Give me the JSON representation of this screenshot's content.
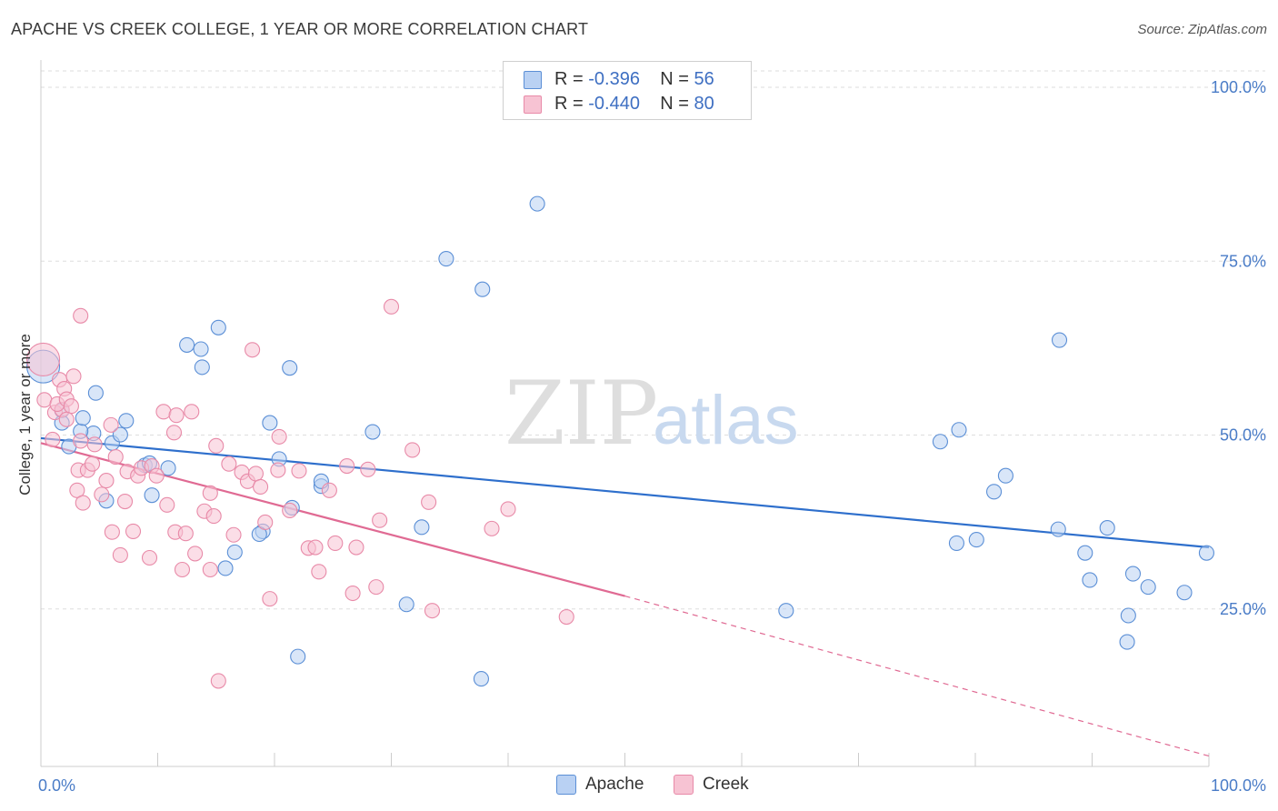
{
  "title": "APACHE VS CREEK COLLEGE, 1 YEAR OR MORE CORRELATION CHART",
  "source": "Source: ZipAtlas.com",
  "watermark": {
    "zip": "ZIP",
    "atlas": "atlas"
  },
  "colors": {
    "apache": "#5b8fd6",
    "apache_fill": "#b9d1f3",
    "apache_line": "#2e6fcc",
    "creek": "#e88aa8",
    "creek_fill": "#f7c3d3",
    "creek_line": "#e06a93",
    "tick_text": "#4a7cc7",
    "grid": "#dddddd"
  },
  "legend": {
    "rows": [
      {
        "r_label": "R =",
        "r_value": "-0.396",
        "n_label": "N =",
        "n_value": "56"
      },
      {
        "r_label": "R =",
        "r_value": "-0.440",
        "n_label": "N =",
        "n_value": "80"
      }
    ]
  },
  "bottom_legend": {
    "apache": "Apache",
    "creek": "Creek"
  },
  "chart_data": {
    "type": "scatter",
    "xlabel": "",
    "ylabel": "College, 1 year or more",
    "xlim": [
      0,
      100
    ],
    "ylim": [
      0,
      100
    ],
    "x_tick_labels": [
      "0.0%",
      "100.0%"
    ],
    "y_tick_labels": [
      "25.0%",
      "50.0%",
      "75.0%",
      "100.0%"
    ],
    "y_ticks": [
      25,
      50,
      75,
      100
    ],
    "grid": "horizontal dashed",
    "legend_placement": "top-center",
    "series": [
      {
        "name": "Apache",
        "r": -0.396,
        "n": 56,
        "trend": {
          "x0": 0,
          "y0": 47.2,
          "x1": 100,
          "y1": 31.5
        },
        "points": [
          [
            0.2,
            57.5,
            18
          ],
          [
            1.8,
            51.2,
            8
          ],
          [
            1.8,
            49.4,
            8
          ],
          [
            4.5,
            47.9,
            8
          ],
          [
            4.7,
            53.7,
            8
          ],
          [
            3.4,
            48.2,
            8
          ],
          [
            3.6,
            50.1,
            8
          ],
          [
            5.6,
            38.2,
            8
          ],
          [
            6.1,
            46.5,
            8
          ],
          [
            6.8,
            47.7,
            8
          ],
          [
            7.3,
            49.7,
            8
          ],
          [
            8.9,
            43.3,
            8
          ],
          [
            9.5,
            39.0,
            8
          ],
          [
            9.3,
            43.6,
            8
          ],
          [
            10.9,
            42.9,
            8
          ],
          [
            12.5,
            60.6,
            8
          ],
          [
            13.7,
            60.0,
            8
          ],
          [
            13.8,
            57.4,
            8
          ],
          [
            15.2,
            63.1,
            8
          ],
          [
            15.8,
            28.5,
            8
          ],
          [
            16.6,
            30.8,
            8
          ],
          [
            19.0,
            33.8,
            8
          ],
          [
            19.6,
            49.4,
            8
          ],
          [
            20.4,
            44.2,
            8
          ],
          [
            21.3,
            57.3,
            8
          ],
          [
            21.5,
            37.2,
            8
          ],
          [
            18.7,
            33.4,
            8
          ],
          [
            24.0,
            40.3,
            8
          ],
          [
            22.0,
            15.8,
            8
          ],
          [
            24.0,
            41.0,
            8
          ],
          [
            28.4,
            48.1,
            8
          ],
          [
            31.3,
            23.3,
            8
          ],
          [
            32.6,
            34.4,
            8
          ],
          [
            34.7,
            73.0,
            8
          ],
          [
            37.8,
            68.6,
            8
          ],
          [
            37.7,
            12.6,
            8
          ],
          [
            42.5,
            80.9,
            8
          ],
          [
            63.8,
            22.4,
            8
          ],
          [
            77.0,
            46.7,
            8
          ],
          [
            78.4,
            32.1,
            8
          ],
          [
            78.6,
            48.4,
            8
          ],
          [
            80.1,
            32.6,
            8
          ],
          [
            81.6,
            39.5,
            8
          ],
          [
            82.6,
            41.8,
            8
          ],
          [
            87.2,
            61.3,
            8
          ],
          [
            87.1,
            34.1,
            8
          ],
          [
            89.4,
            30.7,
            8
          ],
          [
            89.8,
            26.8,
            8
          ],
          [
            91.3,
            34.3,
            8
          ],
          [
            93.0,
            17.9,
            8
          ],
          [
            93.1,
            21.7,
            8
          ],
          [
            93.5,
            27.7,
            8
          ],
          [
            94.8,
            25.8,
            8
          ],
          [
            97.9,
            25.0,
            8
          ],
          [
            99.8,
            30.7,
            8
          ],
          [
            2.4,
            46.0,
            8
          ]
        ]
      },
      {
        "name": "Creek",
        "r": -0.44,
        "n": 80,
        "trend": {
          "x0": 0,
          "y0": 46.5,
          "x1": 50,
          "y1": 24.5,
          "dash_x1": 100,
          "dash_y1": 1.5
        },
        "points": [
          [
            0.2,
            58.5,
            18
          ],
          [
            0.3,
            52.7,
            8
          ],
          [
            1.2,
            50.9,
            8
          ],
          [
            1.8,
            51.3,
            8
          ],
          [
            1.4,
            52.1,
            8
          ],
          [
            1.6,
            55.6,
            8
          ],
          [
            2.0,
            54.3,
            8
          ],
          [
            2.2,
            52.8,
            8
          ],
          [
            2.6,
            51.8,
            8
          ],
          [
            2.8,
            56.1,
            8
          ],
          [
            3.1,
            39.7,
            8
          ],
          [
            3.2,
            42.6,
            8
          ],
          [
            3.4,
            46.8,
            8
          ],
          [
            3.6,
            37.9,
            8
          ],
          [
            3.4,
            64.8,
            8
          ],
          [
            4.0,
            42.6,
            8
          ],
          [
            4.4,
            43.5,
            8
          ],
          [
            4.6,
            46.3,
            8
          ],
          [
            5.2,
            39.1,
            8
          ],
          [
            5.6,
            41.1,
            8
          ],
          [
            6.0,
            49.1,
            8
          ],
          [
            6.4,
            44.5,
            8
          ],
          [
            6.8,
            30.4,
            8
          ],
          [
            7.2,
            38.1,
            8
          ],
          [
            7.4,
            42.4,
            8
          ],
          [
            7.9,
            33.8,
            8
          ],
          [
            8.3,
            41.8,
            8
          ],
          [
            8.6,
            42.9,
            8
          ],
          [
            9.3,
            30.0,
            8
          ],
          [
            9.5,
            43.2,
            8
          ],
          [
            9.9,
            41.8,
            8
          ],
          [
            10.5,
            51.0,
            8
          ],
          [
            10.8,
            37.6,
            8
          ],
          [
            11.5,
            33.7,
            8
          ],
          [
            11.4,
            48.0,
            8
          ],
          [
            11.6,
            50.5,
            8
          ],
          [
            12.1,
            28.3,
            8
          ],
          [
            12.4,
            33.5,
            8
          ],
          [
            12.9,
            51.0,
            8
          ],
          [
            13.2,
            30.6,
            8
          ],
          [
            14.0,
            36.7,
            8
          ],
          [
            14.5,
            28.3,
            8
          ],
          [
            14.5,
            39.3,
            8
          ],
          [
            14.8,
            36.0,
            8
          ],
          [
            15.0,
            46.1,
            8
          ],
          [
            15.2,
            12.3,
            8
          ],
          [
            16.1,
            43.5,
            8
          ],
          [
            16.5,
            33.3,
            8
          ],
          [
            17.2,
            42.3,
            8
          ],
          [
            17.7,
            41.0,
            8
          ],
          [
            18.1,
            59.9,
            8
          ],
          [
            18.4,
            42.1,
            8
          ],
          [
            18.8,
            40.2,
            8
          ],
          [
            19.2,
            35.1,
            8
          ],
          [
            19.6,
            24.1,
            8
          ],
          [
            20.3,
            42.6,
            8
          ],
          [
            20.4,
            47.4,
            8
          ],
          [
            21.3,
            36.8,
            8
          ],
          [
            22.1,
            42.5,
            8
          ],
          [
            22.9,
            31.4,
            8
          ],
          [
            23.5,
            31.5,
            8
          ],
          [
            23.8,
            28.0,
            8
          ],
          [
            24.7,
            39.7,
            8
          ],
          [
            25.2,
            32.1,
            8
          ],
          [
            26.2,
            43.2,
            8
          ],
          [
            26.7,
            24.9,
            8
          ],
          [
            27.0,
            31.5,
            8
          ],
          [
            28.0,
            42.7,
            8
          ],
          [
            28.7,
            25.8,
            8
          ],
          [
            29.0,
            35.4,
            8
          ],
          [
            30.0,
            66.1,
            8
          ],
          [
            31.8,
            45.5,
            8
          ],
          [
            33.2,
            38.0,
            8
          ],
          [
            33.5,
            22.4,
            8
          ],
          [
            38.6,
            34.2,
            8
          ],
          [
            40.0,
            37.0,
            8
          ],
          [
            45.0,
            21.5,
            8
          ],
          [
            6.1,
            33.7,
            8
          ],
          [
            1.0,
            47.0,
            8
          ],
          [
            2.2,
            49.9,
            8
          ]
        ]
      }
    ]
  }
}
